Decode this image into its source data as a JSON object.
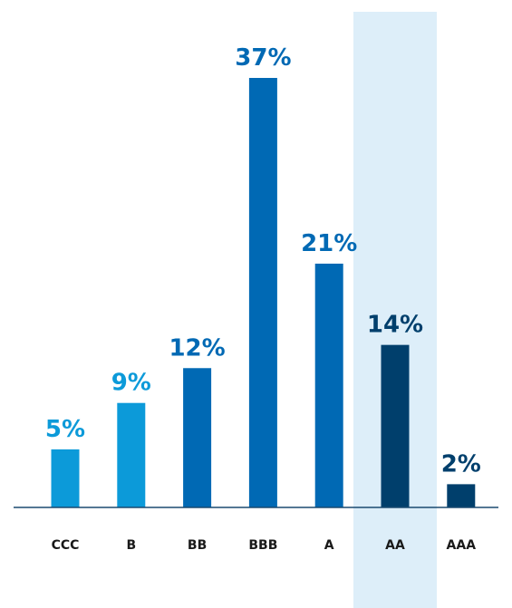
{
  "chart_data": {
    "type": "bar",
    "categories": [
      "CCC",
      "B",
      "BB",
      "BBB",
      "A",
      "AA",
      "AAA"
    ],
    "values": [
      5,
      9,
      12,
      37,
      21,
      14,
      2
    ],
    "value_labels": [
      "5%",
      "9%",
      "12%",
      "37%",
      "21%",
      "14%",
      "2%"
    ],
    "colors": [
      "#0c9ad9",
      "#0c9ad9",
      "#0069b4",
      "#0069b4",
      "#0069b4",
      "#003f6c",
      "#003f6c"
    ]
  }
}
